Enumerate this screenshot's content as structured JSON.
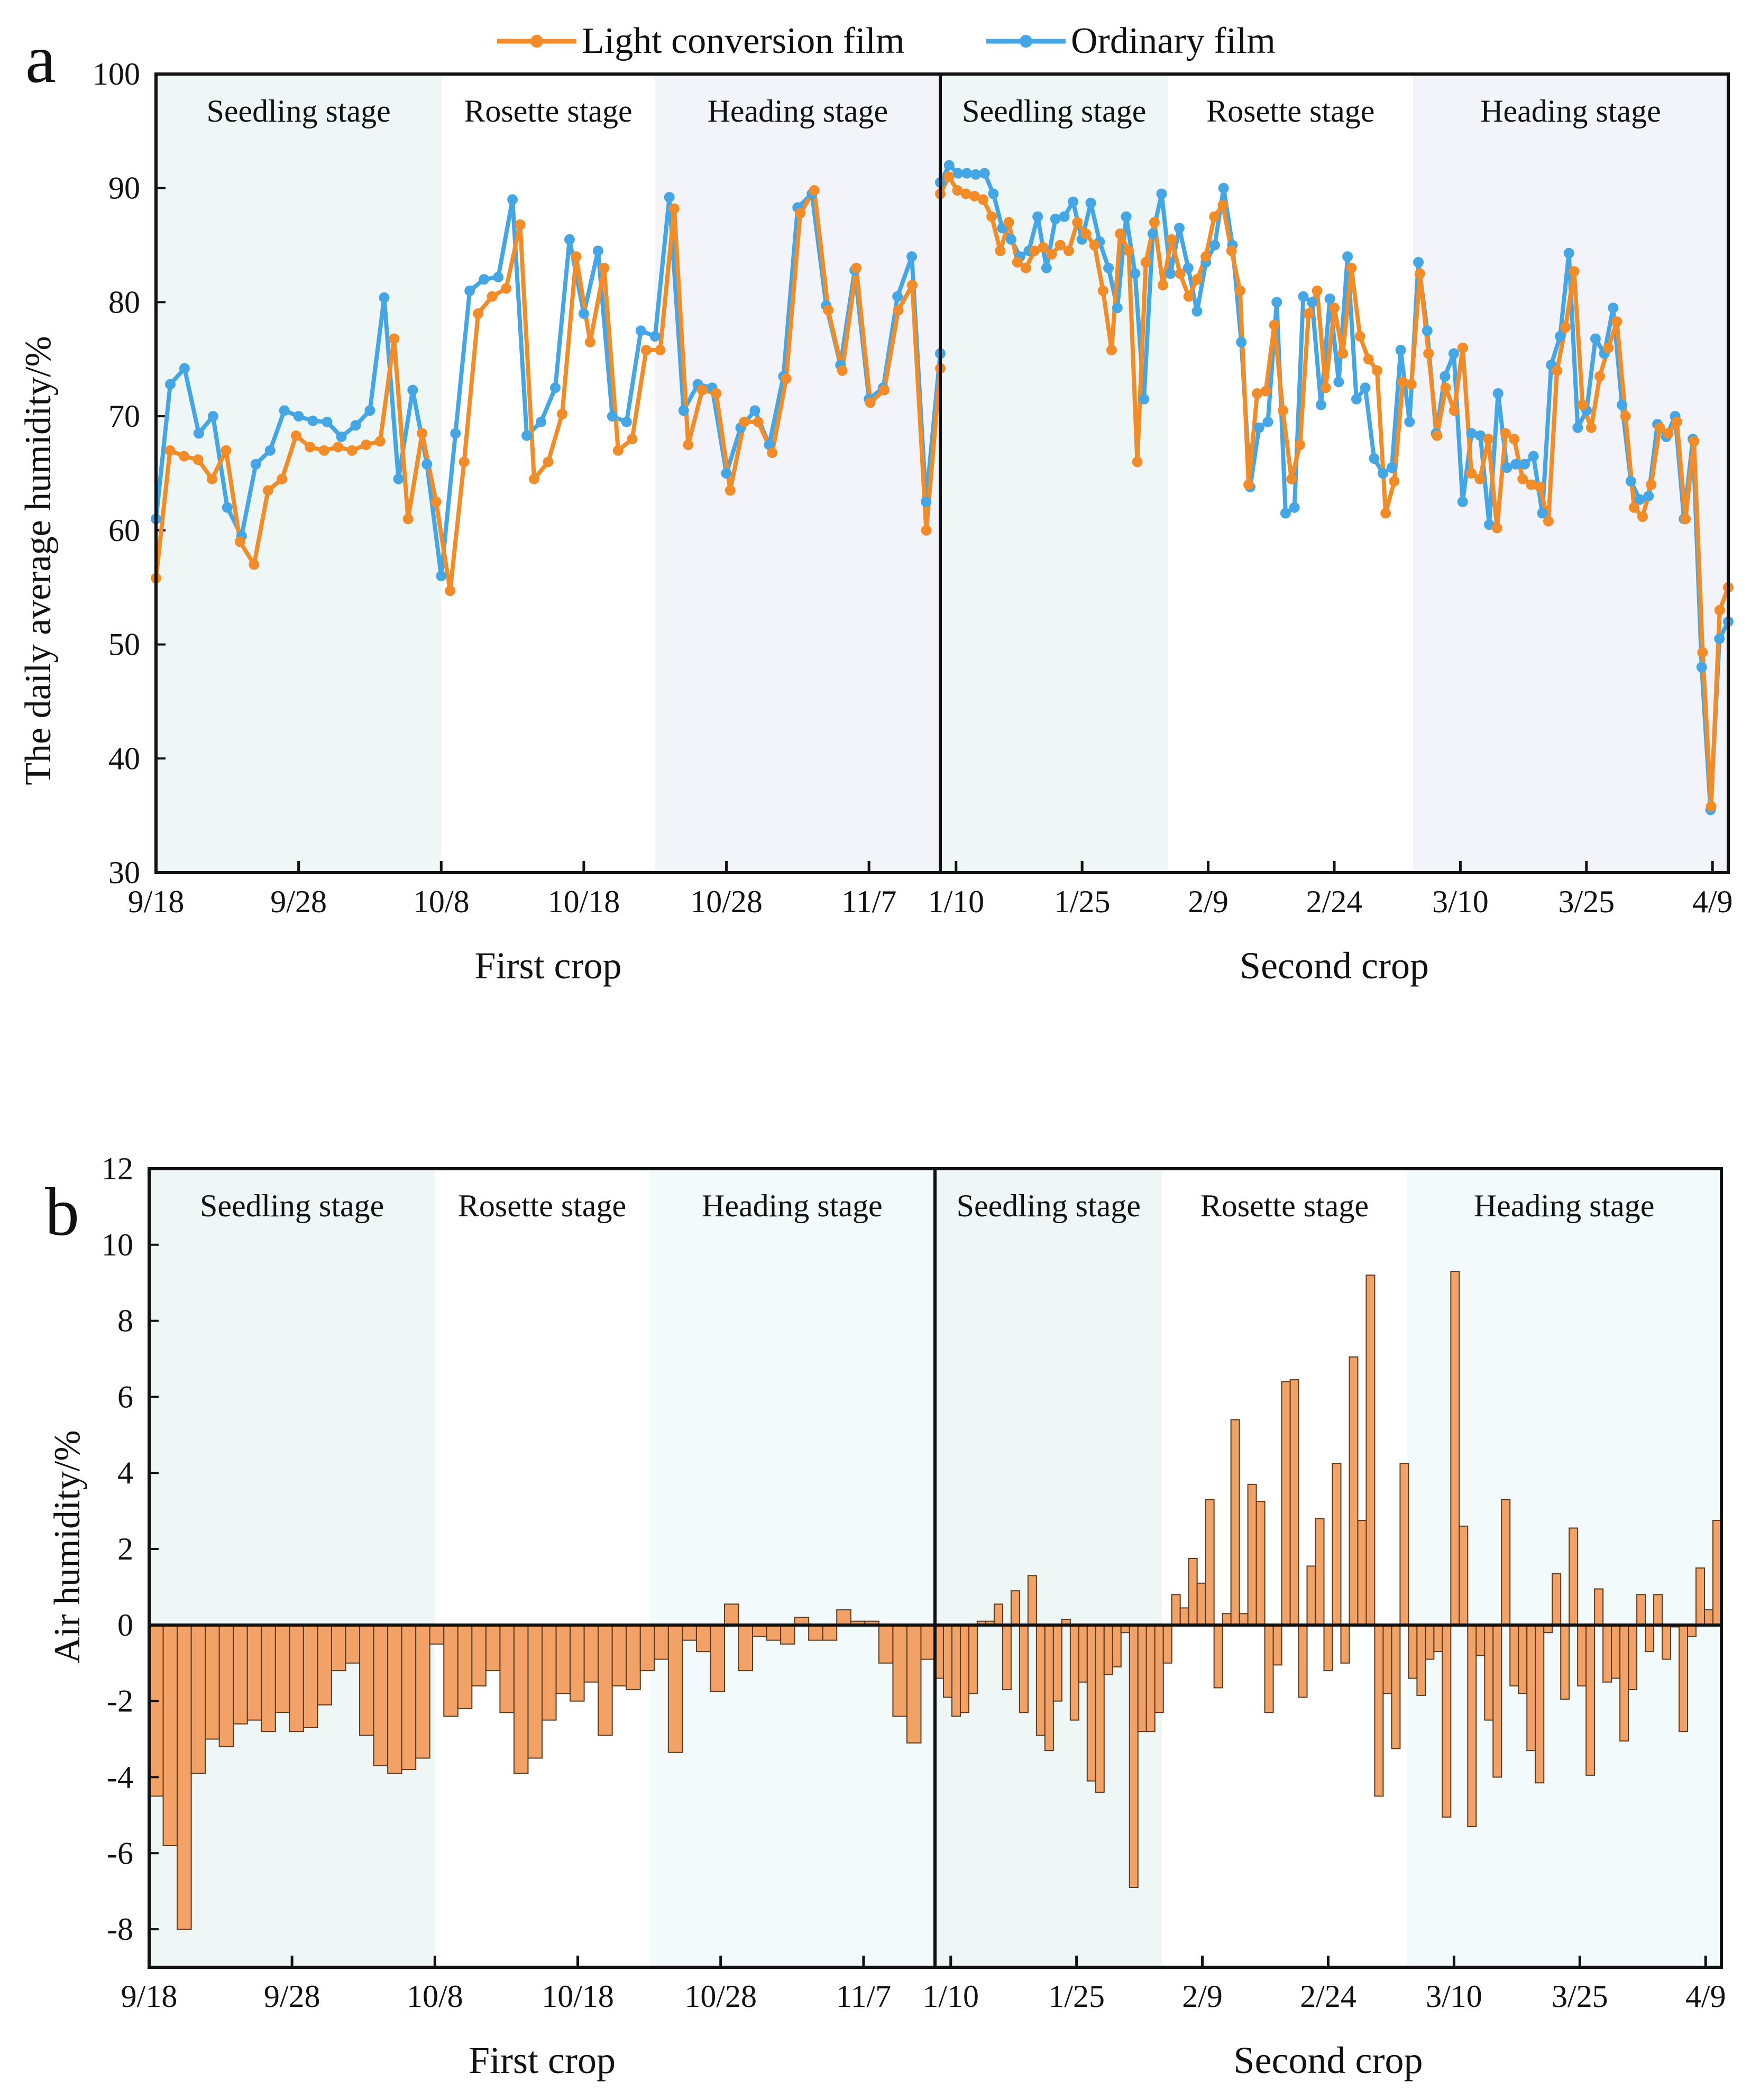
{
  "panels": {
    "a": {
      "letter": "a"
    },
    "b": {
      "letter": "b"
    }
  },
  "colors": {
    "light_film": "#F28C28",
    "ordinary_film": "#45A6E6",
    "bar_fill": "#F2A266",
    "seedling_band": "#EEF6F6",
    "heading_band_a": "#F3F3FA",
    "heading_band_b": "#F2FAFC"
  },
  "chart_data": [
    {
      "id": "a",
      "type": "line",
      "title": "",
      "ylabel": "The daily average humidity/%",
      "ylim": [
        30,
        100
      ],
      "yticks": [
        "30",
        "40",
        "50",
        "60",
        "70",
        "80",
        "90",
        "100"
      ],
      "legend": [
        {
          "name": "Light conversion film"
        },
        {
          "name": "Ordinary film"
        }
      ],
      "legend_position": "top",
      "crops": [
        {
          "name": "First crop",
          "xticks": [
            "9/18",
            "9/28",
            "10/8",
            "10/18",
            "10/28",
            "11/7"
          ],
          "n_days": 55,
          "stages": [
            {
              "label": "Seedling stage",
              "from": 0,
              "to": 20
            },
            {
              "label": "Rosette stage",
              "from": 20,
              "to": 35
            },
            {
              "label": "Heading stage",
              "from": 35,
              "to": 55
            }
          ],
          "series": [
            {
              "name": "Light conversion film",
              "values": [
                55.8,
                67,
                66.5,
                66.2,
                64.5,
                67,
                59,
                57,
                63.5,
                64.5,
                68.3,
                67.3,
                67,
                67.3,
                67,
                67.5,
                67.8,
                76.8,
                61,
                68.5,
                62.5,
                54.7,
                66,
                79,
                80.5,
                81.2,
                86.8,
                64.5,
                66,
                70.2,
                84,
                76.5,
                83,
                67,
                68,
                75.8,
                75.8,
                88.2,
                67.5,
                72.3,
                72,
                63.5,
                69.5,
                69.5,
                66.8,
                73.3,
                87.8,
                89.8,
                79.3,
                74,
                83,
                71.2,
                72.3,
                79.3,
                81.5,
                60,
                74.2
              ]
            },
            {
              "name": "Ordinary film",
              "values": [
                61,
                72.8,
                74.2,
                68.5,
                70,
                62,
                59.5,
                65.8,
                67,
                70.5,
                70,
                69.6,
                69.5,
                68.2,
                69.2,
                70.5,
                80.4,
                64.5,
                72.3,
                65.8,
                56,
                68.5,
                81,
                82,
                82.2,
                89,
                68.3,
                69.5,
                72.5,
                85.5,
                79,
                84.5,
                70,
                69.5,
                77.5,
                77,
                89.2,
                70.5,
                72.8,
                72.5,
                65,
                69,
                70.5,
                67.5,
                73.5,
                88.3,
                89.5,
                79.7,
                74.5,
                82.8,
                71.5,
                72.5,
                80.5,
                84,
                62.5,
                75.5
              ]
            }
          ]
        },
        {
          "name": "Second crop",
          "xticks": [
            "1/10",
            "1/25",
            "2/9",
            "2/24",
            "3/10",
            "3/25",
            "4/9"
          ],
          "n_days": 90,
          "stages": [
            {
              "label": "Seedling stage",
              "from": 0,
              "to": 26
            },
            {
              "label": "Rosette stage",
              "from": 26,
              "to": 54
            },
            {
              "label": "Heading stage",
              "from": 54,
              "to": 90
            }
          ],
          "series": [
            {
              "name": "Light conversion film",
              "values": [
                89.5,
                91,
                89.8,
                89.5,
                89.3,
                89,
                87.5,
                84.5,
                87,
                83.5,
                83,
                84.5,
                84.8,
                84.2,
                85,
                84.5,
                87,
                86,
                85,
                81,
                75.8,
                86,
                84.5,
                66,
                83.5,
                87,
                81.5,
                85.5,
                82.5,
                80.5,
                82,
                84,
                87.5,
                88.5,
                84.5,
                81,
                64,
                72,
                72.2,
                78,
                70.5,
                64.5,
                67.5,
                79,
                81,
                72.5,
                79.5,
                75.5,
                83,
                77,
                75,
                74,
                61.5,
                64.3,
                73,
                72.8,
                82.5,
                75.5,
                68.3,
                72.5,
                70.5,
                76,
                65,
                64.5,
                68,
                60.2,
                68.5,
                68,
                64.5,
                64,
                63.8,
                60.8,
                74,
                77.8,
                82.7,
                71,
                69,
                73.5,
                76,
                78.3,
                70,
                62,
                61.2,
                64,
                69,
                68.5,
                69.5,
                61,
                67.8,
                49.3,
                35.8,
                53,
                55
              ]
            },
            {
              "name": "Ordinary film",
              "values": [
                90.5,
                92,
                91.3,
                91.3,
                91.2,
                91.3,
                89.5,
                86.5,
                85.5,
                84,
                84.5,
                87.5,
                83,
                87.3,
                87.5,
                88.8,
                85.5,
                88.7,
                85.3,
                83,
                79.5,
                87.5,
                82.5,
                71.5,
                86,
                89.5,
                82.5,
                86.5,
                83,
                79.2,
                83.5,
                85,
                90,
                85,
                76.5,
                63.8,
                69,
                69.5,
                80,
                61.5,
                62,
                80.5,
                80,
                71,
                80.3,
                73,
                84,
                71.5,
                72.5,
                66.3,
                65,
                65.5,
                75.8,
                69.5,
                83.5,
                77.5,
                68.5,
                73.5,
                75.5,
                62.5,
                68.5,
                68.3,
                60.5,
                72,
                65.5,
                65.8,
                65.8,
                66.5,
                61.5,
                74.5,
                77,
                84.3,
                69,
                70.5,
                76.8,
                75.5,
                79.5,
                71,
                64.3,
                62.7,
                63,
                69.3,
                68.2,
                70,
                61,
                68,
                48,
                35.5,
                50.5,
                52
              ]
            }
          ]
        }
      ]
    },
    {
      "id": "b",
      "type": "bar",
      "title": "",
      "ylabel": "Air humidity/%",
      "ylim": [
        -9,
        12
      ],
      "yticks": [
        "-8",
        "-6",
        "-4",
        "-2",
        "0",
        "2",
        "4",
        "6",
        "8",
        "10",
        "12"
      ],
      "crops": [
        {
          "name": "First crop",
          "xticks": [
            "9/18",
            "9/28",
            "10/8",
            "10/18",
            "10/28",
            "11/7"
          ],
          "n_days": 55,
          "stages": [
            {
              "label": "Seedling stage",
              "from": 0,
              "to": 20
            },
            {
              "label": "Rosette stage",
              "from": 20,
              "to": 35
            },
            {
              "label": "Heading stage",
              "from": 35,
              "to": 55
            }
          ],
          "values": [
            -4.5,
            -5.8,
            -8,
            -3.9,
            -3,
            -3.2,
            -2.6,
            -2.5,
            -2.8,
            -2.3,
            -2.8,
            -2.7,
            -2.1,
            -1.2,
            -1,
            -2.9,
            -3.7,
            -3.9,
            -3.8,
            -3.5,
            -0.5,
            -2.4,
            -2.2,
            -1.6,
            -1.2,
            -2.3,
            -3.9,
            -3.5,
            -2.5,
            -1.8,
            -2,
            -1.5,
            -2.9,
            -1.6,
            -1.7,
            -1.2,
            -0.9,
            -3.35,
            -0.4,
            -0.7,
            -1.75,
            0.55,
            -1.2,
            -0.3,
            -0.4,
            -0.5,
            0.2,
            -0.4,
            -0.4,
            0.4,
            0.1,
            0.1,
            -1,
            -2.4,
            -3.1,
            -0.9
          ]
        },
        {
          "name": "Second crop",
          "xticks": [
            "1/10",
            "1/25",
            "2/9",
            "2/24",
            "3/10",
            "3/25",
            "4/9"
          ],
          "n_days": 90,
          "stages": [
            {
              "label": "Seedling stage",
              "from": 0,
              "to": 26
            },
            {
              "label": "Rosette stage",
              "from": 26,
              "to": 54
            },
            {
              "label": "Heading stage",
              "from": 54,
              "to": 90
            }
          ],
          "values": [
            -1.4,
            -1.9,
            -2.4,
            -2.3,
            -1.8,
            0.1,
            0.1,
            0.55,
            -1.7,
            0.9,
            -2.3,
            1.3,
            -2.9,
            -3.3,
            -2,
            0.15,
            -2.5,
            -1.5,
            -4.1,
            -4.4,
            -1.3,
            -1.1,
            -0.2,
            -6.9,
            -2.8,
            -2.8,
            -2.3,
            -1,
            0.8,
            0.45,
            1.75,
            1.1,
            3.3,
            -1.65,
            0.3,
            5.4,
            0.3,
            3.7,
            3.25,
            -2.3,
            -1.05,
            6.4,
            6.45,
            -1.9,
            1.55,
            2.8,
            -1.2,
            4.25,
            -1,
            7.05,
            2.75,
            9.2,
            -4.5,
            -1.8,
            -3.25,
            4.25,
            -1.4,
            -1.85,
            -0.9,
            -0.7,
            -5.05,
            9.3,
            2.6,
            -5.3,
            -0.8,
            -2.5,
            -4,
            3.3,
            -1.6,
            -1.8,
            -3.3,
            -4.15,
            -0.2,
            1.35,
            -1.95,
            2.55,
            -1.6,
            -3.95,
            0.95,
            -1.5,
            -1.4,
            -3.05,
            -1.7,
            0.8,
            -0.7,
            0.8,
            -0.9,
            -0.05,
            -2.8,
            -0.3,
            1.5,
            0.4,
            2.75
          ]
        }
      ]
    }
  ]
}
